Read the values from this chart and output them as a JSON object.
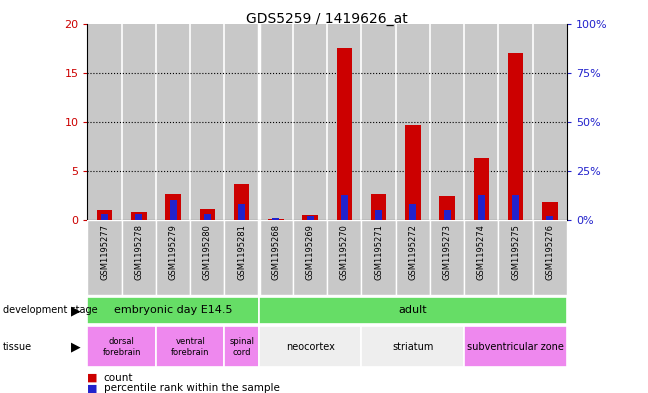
{
  "title": "GDS5259 / 1419626_at",
  "samples": [
    "GSM1195277",
    "GSM1195278",
    "GSM1195279",
    "GSM1195280",
    "GSM1195281",
    "GSM1195268",
    "GSM1195269",
    "GSM1195270",
    "GSM1195271",
    "GSM1195272",
    "GSM1195273",
    "GSM1195274",
    "GSM1195275",
    "GSM1195276"
  ],
  "count": [
    1.05,
    0.85,
    2.7,
    1.1,
    3.7,
    0.15,
    0.5,
    17.5,
    2.7,
    9.7,
    2.5,
    6.3,
    17.0,
    1.8
  ],
  "percentile": [
    3,
    3,
    10,
    3,
    8,
    1,
    2,
    13,
    5,
    8,
    5,
    13,
    13,
    2
  ],
  "ylim_left": [
    0,
    20
  ],
  "ylim_right": [
    0,
    100
  ],
  "yticks_left": [
    0,
    5,
    10,
    15,
    20
  ],
  "yticks_right": [
    0,
    25,
    50,
    75,
    100
  ],
  "count_color": "#cc0000",
  "percentile_color": "#2222cc",
  "col_bg_color": "#c8c8c8",
  "white_bg": "#ffffff",
  "dev_stage_color": "#66dd66",
  "tissue_pink_color": "#ee88ee",
  "tissue_white_color": "#eeeeee",
  "dev_stages": [
    {
      "label": "embryonic day E14.5",
      "start": 0,
      "end": 5
    },
    {
      "label": "adult",
      "start": 5,
      "end": 14
    }
  ],
  "tissues": [
    {
      "label": "dorsal\nforebrain",
      "start": 0,
      "end": 2,
      "pink": true
    },
    {
      "label": "ventral\nforebrain",
      "start": 2,
      "end": 4,
      "pink": true
    },
    {
      "label": "spinal\ncord",
      "start": 4,
      "end": 5,
      "pink": true
    },
    {
      "label": "neocortex",
      "start": 5,
      "end": 8,
      "pink": false
    },
    {
      "label": "striatum",
      "start": 8,
      "end": 11,
      "pink": false
    },
    {
      "label": "subventricular zone",
      "start": 11,
      "end": 14,
      "pink": true
    }
  ],
  "group_separator": 4.5,
  "legend_count_label": "count",
  "legend_pct_label": "percentile rank within the sample"
}
